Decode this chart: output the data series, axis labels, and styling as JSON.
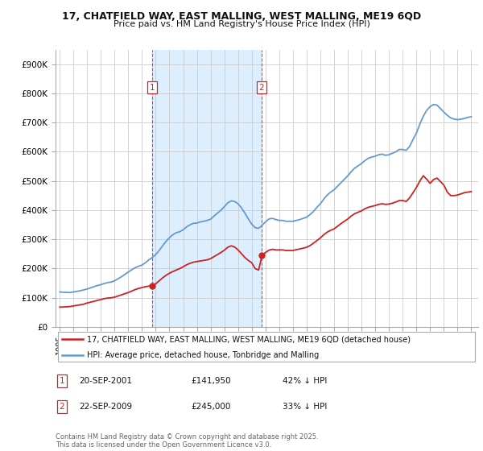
{
  "title_line1": "17, CHATFIELD WAY, EAST MALLING, WEST MALLING, ME19 6QD",
  "title_line2": "Price paid vs. HM Land Registry's House Price Index (HPI)",
  "background_color": "#ffffff",
  "grid_color": "#cccccc",
  "hpi_color": "#6699cc",
  "price_color": "#cc2222",
  "sale1": {
    "date": "20-SEP-2001",
    "price": 141950,
    "label": "1",
    "x_year": 2001.72
  },
  "sale2": {
    "date": "22-SEP-2009",
    "price": 245000,
    "label": "2",
    "x_year": 2009.72
  },
  "ylim": [
    0,
    950000
  ],
  "xlim_start": 1994.7,
  "xlim_end": 2025.5,
  "yticks": [
    0,
    100000,
    200000,
    300000,
    400000,
    500000,
    600000,
    700000,
    800000,
    900000
  ],
  "ytick_labels": [
    "£0",
    "£100K",
    "£200K",
    "£300K",
    "£400K",
    "£500K",
    "£600K",
    "£700K",
    "£800K",
    "£900K"
  ],
  "xticks": [
    1995,
    1996,
    1997,
    1998,
    1999,
    2000,
    2001,
    2002,
    2003,
    2004,
    2005,
    2006,
    2007,
    2008,
    2009,
    2010,
    2011,
    2012,
    2013,
    2014,
    2015,
    2016,
    2017,
    2018,
    2019,
    2020,
    2021,
    2022,
    2023,
    2024,
    2025
  ],
  "legend_line1": "17, CHATFIELD WAY, EAST MALLING, WEST MALLING, ME19 6QD (detached house)",
  "legend_line2": "HPI: Average price, detached house, Tonbridge and Malling",
  "footer": "Contains HM Land Registry data © Crown copyright and database right 2025.\nThis data is licensed under the Open Government Licence v3.0.",
  "shade_x1_start": 2001.72,
  "shade_x1_end": 2009.72,
  "shade_color": "#ddeeff",
  "hpi_data": [
    [
      1995.0,
      120000
    ],
    [
      1995.25,
      119000
    ],
    [
      1995.5,
      118500
    ],
    [
      1995.75,
      118000
    ],
    [
      1996.0,
      120000
    ],
    [
      1996.25,
      122000
    ],
    [
      1996.5,
      124000
    ],
    [
      1996.75,
      127000
    ],
    [
      1997.0,
      130000
    ],
    [
      1997.25,
      134000
    ],
    [
      1997.5,
      138000
    ],
    [
      1997.75,
      142000
    ],
    [
      1998.0,
      145000
    ],
    [
      1998.25,
      149000
    ],
    [
      1998.5,
      152000
    ],
    [
      1998.75,
      154000
    ],
    [
      1999.0,
      158000
    ],
    [
      1999.25,
      165000
    ],
    [
      1999.5,
      172000
    ],
    [
      1999.75,
      180000
    ],
    [
      2000.0,
      188000
    ],
    [
      2000.25,
      196000
    ],
    [
      2000.5,
      203000
    ],
    [
      2000.75,
      208000
    ],
    [
      2001.0,
      212000
    ],
    [
      2001.25,
      220000
    ],
    [
      2001.5,
      230000
    ],
    [
      2001.75,
      238000
    ],
    [
      2002.0,
      248000
    ],
    [
      2002.25,
      262000
    ],
    [
      2002.5,
      278000
    ],
    [
      2002.75,
      293000
    ],
    [
      2003.0,
      306000
    ],
    [
      2003.25,
      316000
    ],
    [
      2003.5,
      323000
    ],
    [
      2003.75,
      326000
    ],
    [
      2004.0,
      333000
    ],
    [
      2004.25,
      343000
    ],
    [
      2004.5,
      350000
    ],
    [
      2004.75,
      355000
    ],
    [
      2005.0,
      356000
    ],
    [
      2005.25,
      360000
    ],
    [
      2005.5,
      362000
    ],
    [
      2005.75,
      365000
    ],
    [
      2006.0,
      369000
    ],
    [
      2006.25,
      380000
    ],
    [
      2006.5,
      390000
    ],
    [
      2006.75,
      400000
    ],
    [
      2007.0,
      412000
    ],
    [
      2007.25,
      425000
    ],
    [
      2007.5,
      432000
    ],
    [
      2007.75,
      430000
    ],
    [
      2008.0,
      422000
    ],
    [
      2008.25,
      408000
    ],
    [
      2008.5,
      390000
    ],
    [
      2008.75,
      370000
    ],
    [
      2009.0,
      352000
    ],
    [
      2009.25,
      340000
    ],
    [
      2009.5,
      338000
    ],
    [
      2009.75,
      348000
    ],
    [
      2010.0,
      360000
    ],
    [
      2010.25,
      370000
    ],
    [
      2010.5,
      372000
    ],
    [
      2010.75,
      368000
    ],
    [
      2011.0,
      365000
    ],
    [
      2011.25,
      365000
    ],
    [
      2011.5,
      362000
    ],
    [
      2011.75,
      362000
    ],
    [
      2012.0,
      362000
    ],
    [
      2012.25,
      365000
    ],
    [
      2012.5,
      368000
    ],
    [
      2012.75,
      372000
    ],
    [
      2013.0,
      376000
    ],
    [
      2013.25,
      385000
    ],
    [
      2013.5,
      396000
    ],
    [
      2013.75,
      410000
    ],
    [
      2014.0,
      422000
    ],
    [
      2014.25,
      438000
    ],
    [
      2014.5,
      452000
    ],
    [
      2014.75,
      462000
    ],
    [
      2015.0,
      470000
    ],
    [
      2015.25,
      482000
    ],
    [
      2015.5,
      494000
    ],
    [
      2015.75,
      506000
    ],
    [
      2016.0,
      518000
    ],
    [
      2016.25,
      532000
    ],
    [
      2016.5,
      544000
    ],
    [
      2016.75,
      552000
    ],
    [
      2017.0,
      560000
    ],
    [
      2017.25,
      570000
    ],
    [
      2017.5,
      578000
    ],
    [
      2017.75,
      582000
    ],
    [
      2018.0,
      585000
    ],
    [
      2018.25,
      590000
    ],
    [
      2018.5,
      592000
    ],
    [
      2018.75,
      588000
    ],
    [
      2019.0,
      590000
    ],
    [
      2019.25,
      595000
    ],
    [
      2019.5,
      600000
    ],
    [
      2019.75,
      608000
    ],
    [
      2020.0,
      608000
    ],
    [
      2020.25,
      605000
    ],
    [
      2020.5,
      618000
    ],
    [
      2020.75,
      642000
    ],
    [
      2021.0,
      664000
    ],
    [
      2021.25,
      695000
    ],
    [
      2021.5,
      722000
    ],
    [
      2021.75,
      742000
    ],
    [
      2022.0,
      755000
    ],
    [
      2022.25,
      762000
    ],
    [
      2022.5,
      760000
    ],
    [
      2022.75,
      748000
    ],
    [
      2023.0,
      736000
    ],
    [
      2023.25,
      725000
    ],
    [
      2023.5,
      716000
    ],
    [
      2023.75,
      712000
    ],
    [
      2024.0,
      710000
    ],
    [
      2024.25,
      712000
    ],
    [
      2024.5,
      714000
    ],
    [
      2024.75,
      718000
    ],
    [
      2025.0,
      720000
    ]
  ],
  "price_data": [
    [
      1995.0,
      68000
    ],
    [
      1995.25,
      68500
    ],
    [
      1995.5,
      69000
    ],
    [
      1995.75,
      70000
    ],
    [
      1996.0,
      72000
    ],
    [
      1996.25,
      74000
    ],
    [
      1996.5,
      76000
    ],
    [
      1996.75,
      78000
    ],
    [
      1997.0,
      82000
    ],
    [
      1997.25,
      85000
    ],
    [
      1997.5,
      88000
    ],
    [
      1997.75,
      91000
    ],
    [
      1998.0,
      94000
    ],
    [
      1998.25,
      97000
    ],
    [
      1998.5,
      99000
    ],
    [
      1998.75,
      100000
    ],
    [
      1999.0,
      102000
    ],
    [
      1999.25,
      106000
    ],
    [
      1999.5,
      110000
    ],
    [
      1999.75,
      114000
    ],
    [
      2000.0,
      118000
    ],
    [
      2000.25,
      123000
    ],
    [
      2000.5,
      128000
    ],
    [
      2000.75,
      132000
    ],
    [
      2001.0,
      135000
    ],
    [
      2001.25,
      138000
    ],
    [
      2001.5,
      140000
    ],
    [
      2001.75,
      141950
    ],
    [
      2002.0,
      148000
    ],
    [
      2002.25,
      158000
    ],
    [
      2002.5,
      168000
    ],
    [
      2002.75,
      177000
    ],
    [
      2003.0,
      184000
    ],
    [
      2003.25,
      190000
    ],
    [
      2003.5,
      195000
    ],
    [
      2003.75,
      200000
    ],
    [
      2004.0,
      206000
    ],
    [
      2004.25,
      213000
    ],
    [
      2004.5,
      218000
    ],
    [
      2004.75,
      222000
    ],
    [
      2005.0,
      224000
    ],
    [
      2005.25,
      226000
    ],
    [
      2005.5,
      228000
    ],
    [
      2005.75,
      230000
    ],
    [
      2006.0,
      234000
    ],
    [
      2006.25,
      241000
    ],
    [
      2006.5,
      248000
    ],
    [
      2006.75,
      255000
    ],
    [
      2007.0,
      263000
    ],
    [
      2007.25,
      273000
    ],
    [
      2007.5,
      278000
    ],
    [
      2007.75,
      274000
    ],
    [
      2008.0,
      264000
    ],
    [
      2008.25,
      251000
    ],
    [
      2008.5,
      238000
    ],
    [
      2008.75,
      228000
    ],
    [
      2009.0,
      220000
    ],
    [
      2009.25,
      200000
    ],
    [
      2009.5,
      195000
    ],
    [
      2009.75,
      245000
    ],
    [
      2010.0,
      255000
    ],
    [
      2010.25,
      263000
    ],
    [
      2010.5,
      266000
    ],
    [
      2010.75,
      264000
    ],
    [
      2011.0,
      264000
    ],
    [
      2011.25,
      264000
    ],
    [
      2011.5,
      262000
    ],
    [
      2011.75,
      262000
    ],
    [
      2012.0,
      262000
    ],
    [
      2012.25,
      265000
    ],
    [
      2012.5,
      267000
    ],
    [
      2012.75,
      270000
    ],
    [
      2013.0,
      273000
    ],
    [
      2013.25,
      279000
    ],
    [
      2013.5,
      287000
    ],
    [
      2013.75,
      296000
    ],
    [
      2014.0,
      305000
    ],
    [
      2014.25,
      316000
    ],
    [
      2014.5,
      325000
    ],
    [
      2014.75,
      331000
    ],
    [
      2015.0,
      336000
    ],
    [
      2015.25,
      345000
    ],
    [
      2015.5,
      354000
    ],
    [
      2015.75,
      362000
    ],
    [
      2016.0,
      370000
    ],
    [
      2016.25,
      380000
    ],
    [
      2016.5,
      388000
    ],
    [
      2016.75,
      393000
    ],
    [
      2017.0,
      398000
    ],
    [
      2017.25,
      405000
    ],
    [
      2017.5,
      410000
    ],
    [
      2017.75,
      413000
    ],
    [
      2018.0,
      416000
    ],
    [
      2018.25,
      420000
    ],
    [
      2018.5,
      422000
    ],
    [
      2018.75,
      420000
    ],
    [
      2019.0,
      421000
    ],
    [
      2019.25,
      424000
    ],
    [
      2019.5,
      428000
    ],
    [
      2019.75,
      433000
    ],
    [
      2020.0,
      433000
    ],
    [
      2020.25,
      430000
    ],
    [
      2020.5,
      442000
    ],
    [
      2020.75,
      460000
    ],
    [
      2021.0,
      478000
    ],
    [
      2021.25,
      500000
    ],
    [
      2021.5,
      518000
    ],
    [
      2021.75,
      506000
    ],
    [
      2022.0,
      492000
    ],
    [
      2022.25,
      505000
    ],
    [
      2022.5,
      510000
    ],
    [
      2022.75,
      498000
    ],
    [
      2023.0,
      486000
    ],
    [
      2023.25,
      462000
    ],
    [
      2023.5,
      450000
    ],
    [
      2023.75,
      450000
    ],
    [
      2024.0,
      452000
    ],
    [
      2024.25,
      456000
    ],
    [
      2024.5,
      460000
    ],
    [
      2024.75,
      462000
    ],
    [
      2025.0,
      464000
    ]
  ]
}
